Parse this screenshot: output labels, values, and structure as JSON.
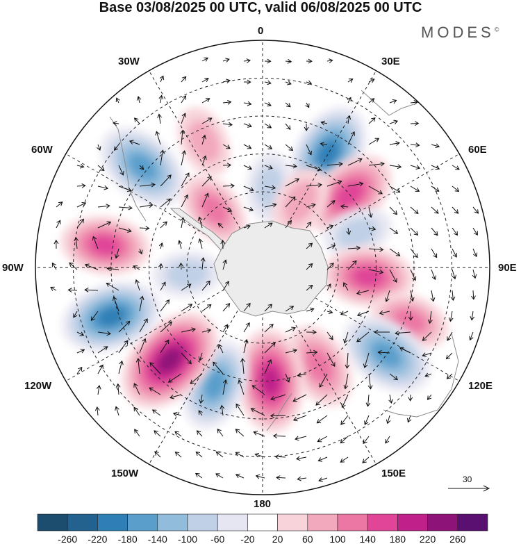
{
  "header": {
    "title": "Base 03/08/2025 00 UTC, valid 06/08/2025 00 UTC",
    "brand": "MODES",
    "brand_mark": "©"
  },
  "map": {
    "projection": "south-polar-stereographic",
    "longitude_labels": [
      "0",
      "30E",
      "60E",
      "90E",
      "120E",
      "150E",
      "180",
      "150W",
      "120W",
      "90W",
      "60W",
      "30W"
    ],
    "anomaly_centers": [
      {
        "lon": -25,
        "lat": -35,
        "value": 70
      },
      {
        "lon": 30,
        "lat": -38,
        "value": -190
      },
      {
        "lon": 50,
        "lat": -45,
        "value": 170
      },
      {
        "lon": 70,
        "lat": -50,
        "value": -60
      },
      {
        "lon": 95,
        "lat": -48,
        "value": 150
      },
      {
        "lon": 110,
        "lat": -28,
        "value": 100
      },
      {
        "lon": 125,
        "lat": -30,
        "value": -170
      },
      {
        "lon": 150,
        "lat": -45,
        "value": 130
      },
      {
        "lon": 176,
        "lat": -45,
        "value": 200
      },
      {
        "lon": -158,
        "lat": -40,
        "value": -150
      },
      {
        "lon": -135,
        "lat": -38,
        "value": 240
      },
      {
        "lon": -108,
        "lat": -27,
        "value": -190
      },
      {
        "lon": -82,
        "lat": -27,
        "value": 140
      },
      {
        "lon": -50,
        "lat": -28,
        "value": -170
      },
      {
        "lon": -40,
        "lat": -60,
        "value": 100
      },
      {
        "lon": 5,
        "lat": -58,
        "value": -60
      },
      {
        "lon": 30,
        "lat": -60,
        "value": 80
      },
      {
        "lon": -95,
        "lat": -60,
        "value": -60
      }
    ]
  },
  "colorbar": {
    "levels": [
      -260,
      -220,
      -180,
      -140,
      -100,
      -60,
      -20,
      20,
      60,
      100,
      140,
      180,
      220,
      260
    ],
    "tick_labels": [
      "-260",
      "-220",
      "-180",
      "-140",
      "-100",
      "-60",
      "-20",
      "20",
      "60",
      "100",
      "140",
      "180",
      "220",
      "260"
    ],
    "colors": [
      "#1c4d6e",
      "#23628f",
      "#2f7fb6",
      "#5a9fcc",
      "#92bcdc",
      "#c0d0e6",
      "#e6e6f2",
      "#ffffff",
      "#f8d4da",
      "#f2a8bd",
      "#ec77a4",
      "#e04598",
      "#c0208a",
      "#8e1379",
      "#5a1070"
    ]
  },
  "reference_vector": {
    "label": "30"
  }
}
